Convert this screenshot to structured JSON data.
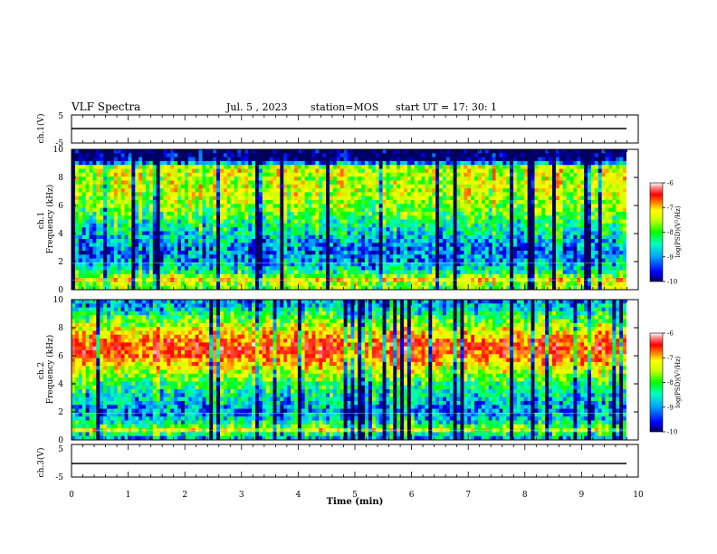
{
  "header": {
    "title": "VLF Spectra",
    "date": "Jul. 5 , 2023",
    "station": "station=MOS",
    "start": "start UT = 17: 30: 1"
  },
  "colors": {
    "colormap": [
      "#000060",
      "#0000ff",
      "#00a0ff",
      "#00ffc0",
      "#00ff00",
      "#c8ff00",
      "#ffff00",
      "#ff8000",
      "#ff0000",
      "#ff6060",
      "#ffffff"
    ],
    "line": "#000000"
  },
  "chart_data": [
    {
      "type": "line",
      "panel": "ch1-waveform",
      "ylabel": "ch.1(V)",
      "ylim": [
        -5,
        5
      ],
      "yticks": [
        "5",
        "-5"
      ],
      "series": [
        {
          "x": [
            0,
            10
          ],
          "y": [
            0,
            0
          ]
        }
      ]
    },
    {
      "type": "heatmap",
      "panel": "ch1-spectrogram",
      "ylabel": "ch.1\nFrequency (kHz)",
      "ylim": [
        0,
        10
      ],
      "yticks": [
        "0",
        "2",
        "4",
        "6",
        "8",
        "10"
      ],
      "colorbar": {
        "label": "log(PSD)(V²/Hz)",
        "range": [
          -10,
          -6
        ],
        "ticks": [
          "-6",
          "-7",
          "-8",
          "-9",
          "-10"
        ]
      },
      "profile": {
        "freq_khz": [
          0.3,
          0.7,
          1.2,
          2.0,
          3.0,
          4.0,
          5.0,
          6.0,
          7.0,
          8.0,
          8.7,
          9.2,
          9.8
        ],
        "log_psd": [
          -8.2,
          -7.6,
          -8.6,
          -9.2,
          -9.3,
          -8.9,
          -8.5,
          -8.1,
          -7.9,
          -7.9,
          -7.8,
          -10,
          -10
        ]
      }
    },
    {
      "type": "heatmap",
      "panel": "ch2-spectrogram",
      "ylabel": "ch.2\nFrequency (kHz)",
      "ylim": [
        0,
        10
      ],
      "yticks": [
        "0",
        "2",
        "4",
        "6",
        "8",
        "10"
      ],
      "colorbar": {
        "label": "log(PSD)(V²/Hz)",
        "range": [
          -10,
          -6
        ],
        "ticks": [
          "-6",
          "-7",
          "-8",
          "-9",
          "-10"
        ]
      },
      "profile": {
        "freq_khz": [
          0.3,
          0.7,
          1.2,
          2.0,
          3.0,
          4.0,
          5.0,
          6.0,
          6.5,
          7.0,
          8.0,
          9.0,
          9.8
        ],
        "log_psd": [
          -9.0,
          -7.8,
          -8.7,
          -9.2,
          -8.9,
          -8.5,
          -7.8,
          -7.0,
          -6.8,
          -7.0,
          -7.8,
          -8.6,
          -9.2
        ]
      }
    },
    {
      "type": "line",
      "panel": "ch3-waveform",
      "ylabel": "ch.3(V)",
      "ylim": [
        -5,
        5
      ],
      "yticks": [
        "5",
        "-5"
      ],
      "xlabel": "Time (min)",
      "xlim": [
        0,
        10
      ],
      "xticks": [
        "0",
        "1",
        "2",
        "3",
        "4",
        "5",
        "6",
        "7",
        "8",
        "9",
        "10"
      ],
      "series": [
        {
          "x": [
            0,
            10
          ],
          "y": [
            0,
            0
          ]
        }
      ]
    }
  ]
}
